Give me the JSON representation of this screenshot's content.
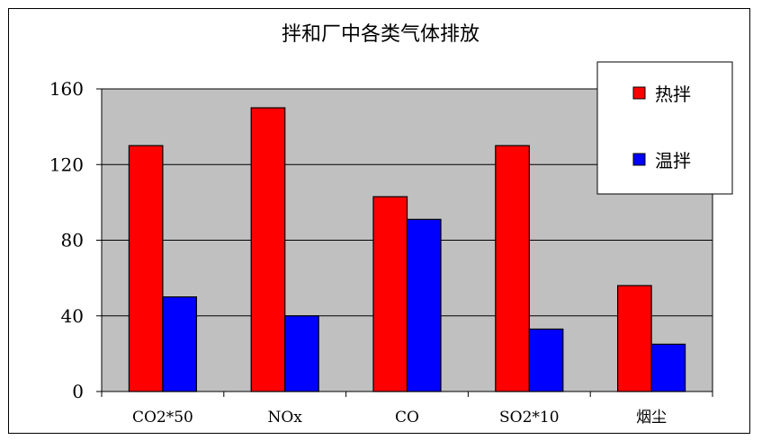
{
  "chart_data": {
    "type": "bar",
    "title": "拌和厂中各类气体排放",
    "categories": [
      "CO2*50",
      "NOx",
      "CO",
      "SO2*10",
      "烟尘"
    ],
    "series": [
      {
        "name": "热拌",
        "color": "#ff0000",
        "values": [
          130,
          150,
          103,
          130,
          56
        ]
      },
      {
        "name": "温拌",
        "color": "#0000ff",
        "values": [
          50,
          40,
          91,
          33,
          25
        ]
      }
    ],
    "ylim": [
      0,
      160
    ],
    "yticks": [
      0,
      40,
      80,
      120,
      160
    ],
    "plot_background": "#c0c0c0",
    "grid": true,
    "legend_position": "top-right"
  }
}
